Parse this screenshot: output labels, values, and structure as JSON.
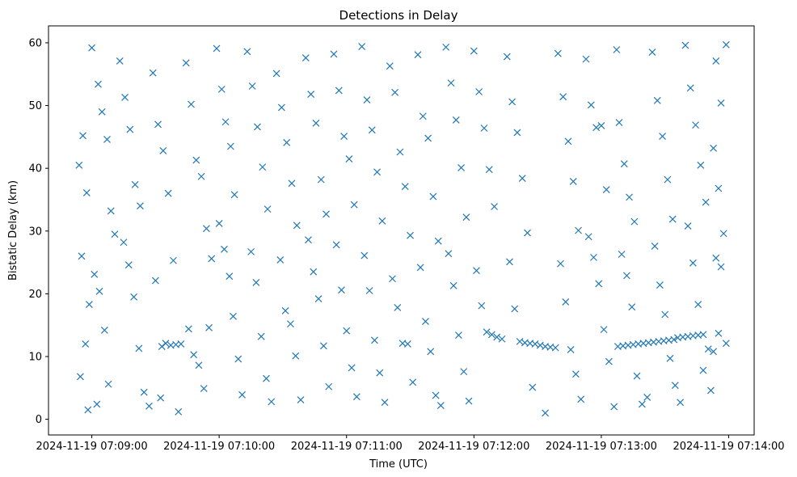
{
  "chart_data": {
    "type": "scatter",
    "title": "Detections in Delay",
    "xlabel": "Time (UTC)",
    "ylabel": "Bistatic Delay (km)",
    "marker": "x",
    "marker_color": "#1f77b4",
    "grid": false,
    "xlim": [
      -0.34,
      5.2
    ],
    "ylim": [
      -2.5,
      62.7
    ],
    "x_units": "minutes after 2024-11-19 07:09:00",
    "x_ticks": [
      0,
      1,
      2,
      3,
      4,
      5
    ],
    "x_tick_labels": [
      "2024-11-19 07:09:00",
      "2024-11-19 07:10:00",
      "2024-11-19 07:11:00",
      "2024-11-19 07:12:00",
      "2024-11-19 07:13:00",
      "2024-11-19 07:14:00"
    ],
    "y_ticks": [
      0,
      10,
      20,
      30,
      40,
      50,
      60
    ],
    "y_tick_labels": [
      "0",
      "10",
      "20",
      "30",
      "40",
      "50",
      "60"
    ],
    "series": [
      {
        "name": "detections",
        "points": [
          [
            -0.1,
            40.5
          ],
          [
            -0.07,
            45.2
          ],
          [
            -0.04,
            36.1
          ],
          [
            -0.08,
            26
          ],
          [
            -0.02,
            18.3
          ],
          [
            -0.05,
            12
          ],
          [
            -0.09,
            6.8
          ],
          [
            -0.03,
            1.5
          ],
          [
            0.0,
            59.2
          ],
          [
            0.05,
            53.4
          ],
          [
            0.08,
            49
          ],
          [
            0.12,
            44.6
          ],
          [
            0.15,
            33.2
          ],
          [
            0.18,
            29.5
          ],
          [
            0.02,
            23.1
          ],
          [
            0.06,
            20.4
          ],
          [
            0.1,
            14.2
          ],
          [
            0.13,
            5.6
          ],
          [
            0.04,
            2.4
          ],
          [
            0.22,
            57.1
          ],
          [
            0.26,
            51.3
          ],
          [
            0.3,
            46.2
          ],
          [
            0.34,
            37.4
          ],
          [
            0.38,
            34
          ],
          [
            0.25,
            28.2
          ],
          [
            0.29,
            24.6
          ],
          [
            0.33,
            19.5
          ],
          [
            0.37,
            11.3
          ],
          [
            0.41,
            4.3
          ],
          [
            0.45,
            2.1
          ],
          [
            0.48,
            55.2
          ],
          [
            0.52,
            47
          ],
          [
            0.56,
            42.8
          ],
          [
            0.6,
            36
          ],
          [
            0.64,
            25.3
          ],
          [
            0.5,
            22.1
          ],
          [
            0.55,
            11.6
          ],
          [
            0.58,
            12.1
          ],
          [
            0.62,
            11.8
          ],
          [
            0.66,
            11.9
          ],
          [
            0.7,
            12
          ],
          [
            0.54,
            3.4
          ],
          [
            0.68,
            1.2
          ],
          [
            0.74,
            56.8
          ],
          [
            0.78,
            50.2
          ],
          [
            0.82,
            41.3
          ],
          [
            0.86,
            38.7
          ],
          [
            0.9,
            30.4
          ],
          [
            0.94,
            25.6
          ],
          [
            0.76,
            14.4
          ],
          [
            0.8,
            10.3
          ],
          [
            0.84,
            8.6
          ],
          [
            0.88,
            4.9
          ],
          [
            0.92,
            14.6
          ],
          [
            0.98,
            59.1
          ],
          [
            1.02,
            52.6
          ],
          [
            1.05,
            47.4
          ],
          [
            1.09,
            43.5
          ],
          [
            1.12,
            35.8
          ],
          [
            1.0,
            31.2
          ],
          [
            1.04,
            27.1
          ],
          [
            1.08,
            22.8
          ],
          [
            1.11,
            16.4
          ],
          [
            1.15,
            9.6
          ],
          [
            1.18,
            3.9
          ],
          [
            1.22,
            58.6
          ],
          [
            1.26,
            53.1
          ],
          [
            1.3,
            46.6
          ],
          [
            1.34,
            40.2
          ],
          [
            1.38,
            33.5
          ],
          [
            1.25,
            26.7
          ],
          [
            1.29,
            21.8
          ],
          [
            1.33,
            13.2
          ],
          [
            1.37,
            6.5
          ],
          [
            1.41,
            2.8
          ],
          [
            1.45,
            55.1
          ],
          [
            1.49,
            49.7
          ],
          [
            1.53,
            44.1
          ],
          [
            1.57,
            37.6
          ],
          [
            1.61,
            30.9
          ],
          [
            1.48,
            25.4
          ],
          [
            1.52,
            17.3
          ],
          [
            1.56,
            15.2
          ],
          [
            1.6,
            10.1
          ],
          [
            1.64,
            3.1
          ],
          [
            1.68,
            57.6
          ],
          [
            1.72,
            51.8
          ],
          [
            1.76,
            47.2
          ],
          [
            1.8,
            38.2
          ],
          [
            1.84,
            32.7
          ],
          [
            1.7,
            28.6
          ],
          [
            1.74,
            23.5
          ],
          [
            1.78,
            19.2
          ],
          [
            1.82,
            11.7
          ],
          [
            1.86,
            5.2
          ],
          [
            1.9,
            58.2
          ],
          [
            1.94,
            52.4
          ],
          [
            1.98,
            45.1
          ],
          [
            2.02,
            41.5
          ],
          [
            2.06,
            34.2
          ],
          [
            1.92,
            27.8
          ],
          [
            1.96,
            20.6
          ],
          [
            2.0,
            14.1
          ],
          [
            2.04,
            8.2
          ],
          [
            2.08,
            3.6
          ],
          [
            2.12,
            59.4
          ],
          [
            2.16,
            50.9
          ],
          [
            2.2,
            46.1
          ],
          [
            2.24,
            39.4
          ],
          [
            2.28,
            31.6
          ],
          [
            2.14,
            26.1
          ],
          [
            2.18,
            20.5
          ],
          [
            2.22,
            12.6
          ],
          [
            2.26,
            7.4
          ],
          [
            2.3,
            2.7
          ],
          [
            2.34,
            56.3
          ],
          [
            2.38,
            52.1
          ],
          [
            2.42,
            42.6
          ],
          [
            2.46,
            37.1
          ],
          [
            2.5,
            29.3
          ],
          [
            2.36,
            22.4
          ],
          [
            2.4,
            17.8
          ],
          [
            2.44,
            12.1
          ],
          [
            2.48,
            12
          ],
          [
            2.52,
            5.9
          ],
          [
            2.56,
            58.1
          ],
          [
            2.6,
            48.3
          ],
          [
            2.64,
            44.8
          ],
          [
            2.68,
            35.5
          ],
          [
            2.72,
            28.4
          ],
          [
            2.58,
            24.2
          ],
          [
            2.62,
            15.6
          ],
          [
            2.66,
            10.8
          ],
          [
            2.7,
            3.8
          ],
          [
            2.74,
            2.2
          ],
          [
            2.78,
            59.3
          ],
          [
            2.82,
            53.6
          ],
          [
            2.86,
            47.7
          ],
          [
            2.9,
            40.1
          ],
          [
            2.94,
            32.2
          ],
          [
            2.8,
            26.4
          ],
          [
            2.84,
            21.3
          ],
          [
            2.88,
            13.4
          ],
          [
            2.92,
            7.6
          ],
          [
            2.96,
            2.9
          ],
          [
            3.0,
            58.7
          ],
          [
            3.04,
            52.2
          ],
          [
            3.08,
            46.4
          ],
          [
            3.12,
            39.8
          ],
          [
            3.16,
            33.9
          ],
          [
            3.02,
            23.7
          ],
          [
            3.06,
            18.1
          ],
          [
            3.1,
            13.9
          ],
          [
            3.14,
            13.5
          ],
          [
            3.18,
            13.1
          ],
          [
            3.22,
            12.8
          ],
          [
            3.26,
            57.8
          ],
          [
            3.3,
            50.6
          ],
          [
            3.34,
            45.7
          ],
          [
            3.38,
            38.4
          ],
          [
            3.42,
            29.7
          ],
          [
            3.28,
            25.1
          ],
          [
            3.32,
            17.6
          ],
          [
            3.36,
            12.4
          ],
          [
            3.4,
            12.2
          ],
          [
            3.44,
            12.1
          ],
          [
            3.48,
            12
          ],
          [
            3.52,
            11.8
          ],
          [
            3.56,
            11.6
          ],
          [
            3.6,
            11.5
          ],
          [
            3.64,
            11.4
          ],
          [
            3.46,
            5.1
          ],
          [
            3.56,
            1.0
          ],
          [
            3.66,
            58.3
          ],
          [
            3.7,
            51.4
          ],
          [
            3.74,
            44.3
          ],
          [
            3.78,
            37.9
          ],
          [
            3.82,
            30.1
          ],
          [
            3.68,
            24.8
          ],
          [
            3.72,
            18.7
          ],
          [
            3.76,
            11.1
          ],
          [
            3.8,
            7.2
          ],
          [
            3.84,
            3.2
          ],
          [
            3.88,
            57.4
          ],
          [
            3.92,
            50.1
          ],
          [
            3.96,
            46.5
          ],
          [
            4.0,
            46.8
          ],
          [
            4.04,
            36.6
          ],
          [
            3.9,
            29.1
          ],
          [
            3.94,
            25.8
          ],
          [
            3.98,
            21.6
          ],
          [
            4.02,
            14.3
          ],
          [
            4.06,
            9.2
          ],
          [
            4.1,
            2.0
          ],
          [
            4.12,
            58.9
          ],
          [
            4.14,
            47.3
          ],
          [
            4.18,
            40.7
          ],
          [
            4.22,
            35.4
          ],
          [
            4.26,
            31.5
          ],
          [
            4.16,
            26.3
          ],
          [
            4.2,
            22.9
          ],
          [
            4.24,
            17.9
          ],
          [
            4.13,
            11.6
          ],
          [
            4.17,
            11.7
          ],
          [
            4.21,
            11.8
          ],
          [
            4.25,
            11.9
          ],
          [
            4.29,
            12
          ],
          [
            4.33,
            12.1
          ],
          [
            4.37,
            12.2
          ],
          [
            4.41,
            12.3
          ],
          [
            4.45,
            12.4
          ],
          [
            4.49,
            12.5
          ],
          [
            4.53,
            12.6
          ],
          [
            4.57,
            12.7
          ],
          [
            4.28,
            6.9
          ],
          [
            4.32,
            2.4
          ],
          [
            4.36,
            3.5
          ],
          [
            4.4,
            58.5
          ],
          [
            4.44,
            50.8
          ],
          [
            4.48,
            45.1
          ],
          [
            4.52,
            38.2
          ],
          [
            4.56,
            31.9
          ],
          [
            4.42,
            27.6
          ],
          [
            4.46,
            21.4
          ],
          [
            4.5,
            16.7
          ],
          [
            4.54,
            9.7
          ],
          [
            4.58,
            5.4
          ],
          [
            4.62,
            2.7
          ],
          [
            4.66,
            59.6
          ],
          [
            4.7,
            52.8
          ],
          [
            4.74,
            46.9
          ],
          [
            4.78,
            40.5
          ],
          [
            4.82,
            34.6
          ],
          [
            4.68,
            30.8
          ],
          [
            4.72,
            24.9
          ],
          [
            4.76,
            18.3
          ],
          [
            4.6,
            13
          ],
          [
            4.64,
            13.1
          ],
          [
            4.68,
            13.2
          ],
          [
            4.72,
            13.3
          ],
          [
            4.76,
            13.4
          ],
          [
            4.8,
            13.5
          ],
          [
            4.84,
            11.2
          ],
          [
            4.88,
            10.8
          ],
          [
            4.92,
            13.7
          ],
          [
            4.8,
            7.8
          ],
          [
            4.86,
            4.6
          ],
          [
            4.9,
            57.1
          ],
          [
            4.94,
            50.4
          ],
          [
            4.88,
            43.2
          ],
          [
            4.92,
            36.8
          ],
          [
            4.96,
            29.6
          ],
          [
            4.9,
            25.7
          ],
          [
            4.94,
            24.3
          ],
          [
            4.98,
            59.7
          ],
          [
            4.98,
            12.1
          ]
        ]
      }
    ]
  }
}
